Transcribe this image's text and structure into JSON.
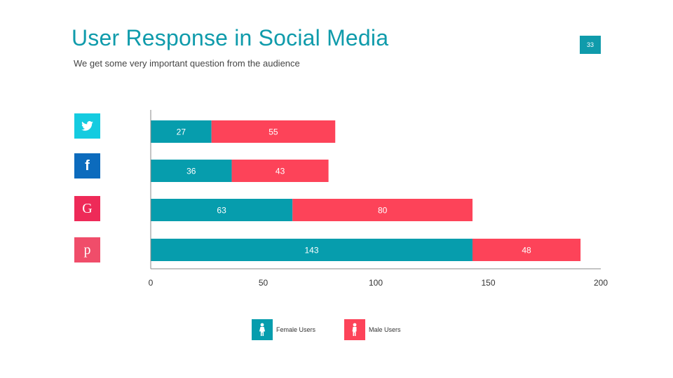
{
  "header": {
    "title": "User Response in Social Media",
    "subtitle": "We get some very important question from the audience",
    "page_number": "33"
  },
  "icons": [
    {
      "name": "twitter-icon",
      "color": "#14cbe0"
    },
    {
      "name": "facebook-icon",
      "color": "#0c6bbd"
    },
    {
      "name": "google-icon",
      "color": "#ee2a58"
    },
    {
      "name": "pinterest-icon",
      "color": "#f04d6a"
    }
  ],
  "colors": {
    "female": "#069dad",
    "male": "#fd4359",
    "title": "#0f9bab",
    "axis": "#888888"
  },
  "chart_data": {
    "type": "bar",
    "orientation": "horizontal",
    "stacked": true,
    "categories": [
      "Twitter",
      "Facebook",
      "Google",
      "Pinterest"
    ],
    "series": [
      {
        "name": "Female Users",
        "values": [
          27,
          36,
          63,
          143
        ]
      },
      {
        "name": "Male Users",
        "values": [
          55,
          43,
          80,
          48
        ]
      }
    ],
    "xlim": [
      0,
      200
    ],
    "xticks": [
      0,
      50,
      100,
      150,
      200
    ],
    "grid": false,
    "legend": "bottom",
    "data_labels": true
  },
  "legend": {
    "female_label": "Female Users",
    "male_label": "Male Users"
  }
}
